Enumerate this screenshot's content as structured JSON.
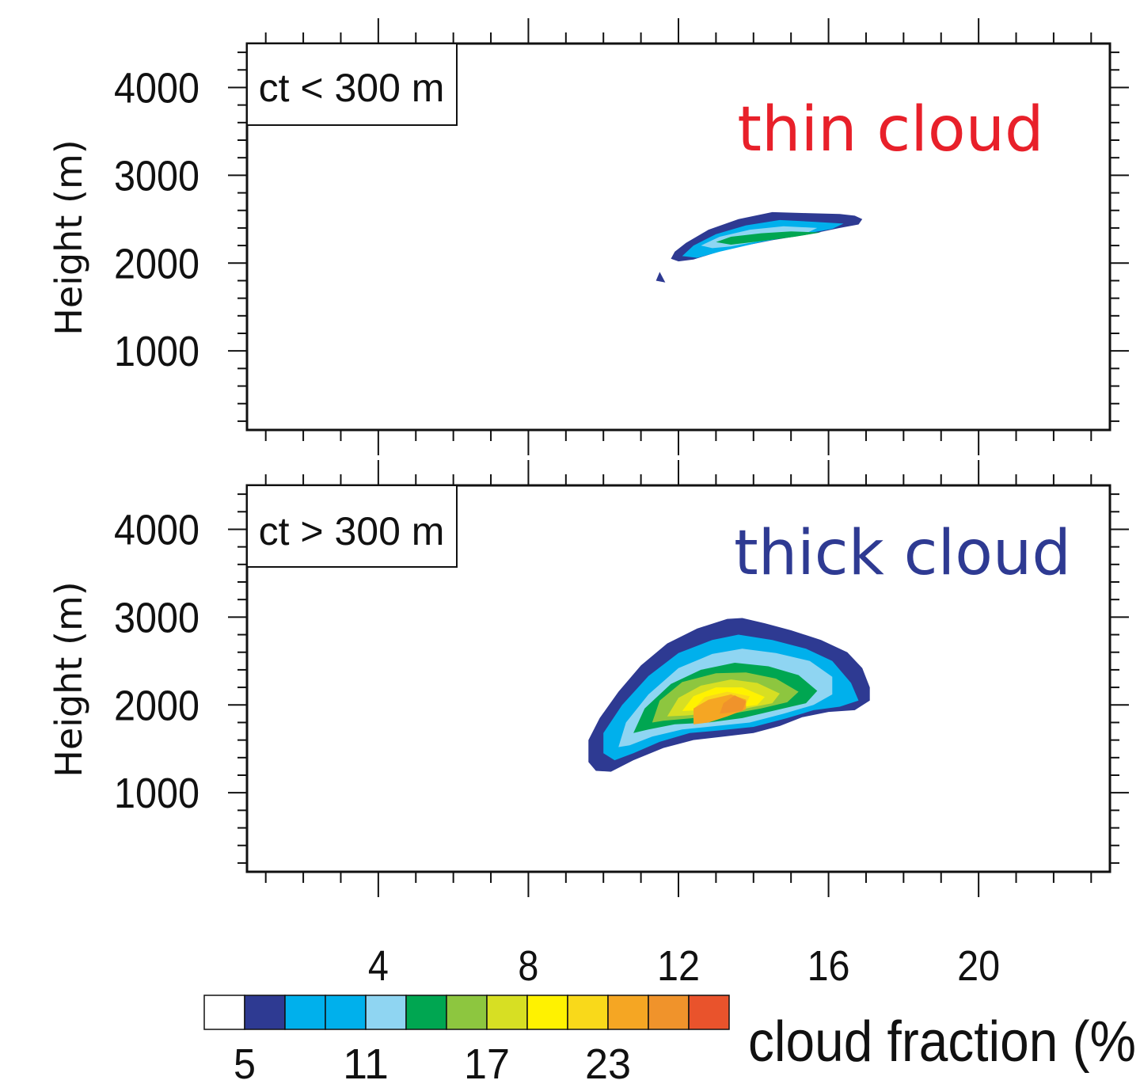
{
  "chart_data": [
    {
      "type": "contour",
      "ylabel": "Height (m)",
      "annotation_box": "ct < 300 m",
      "annotation_text": "thin cloud",
      "annotation_color": "#e8202a",
      "xlim": [
        0.5,
        23.5
      ],
      "ylim": [
        100,
        4500
      ],
      "xticks": [
        4,
        8,
        12,
        16,
        20
      ],
      "xtick_labels_shown": false,
      "yticks": [
        1000,
        2000,
        3000,
        4000
      ],
      "ytick_labels": [
        "1000",
        "2000",
        "3000",
        "4000"
      ],
      "contours": [
        {
          "level": 5,
          "color": "#2e3a92",
          "points": [
            [
              11.8,
              2050
            ],
            [
              11.9,
              2130
            ],
            [
              12.2,
              2230
            ],
            [
              12.8,
              2380
            ],
            [
              13.6,
              2500
            ],
            [
              14.5,
              2580
            ],
            [
              15.4,
              2570
            ],
            [
              16.3,
              2560
            ],
            [
              16.7,
              2540
            ],
            [
              16.9,
              2500
            ],
            [
              16.8,
              2440
            ],
            [
              16.3,
              2400
            ],
            [
              15.5,
              2330
            ],
            [
              14.5,
              2260
            ],
            [
              13.3,
              2160
            ],
            [
              12.4,
              2040
            ],
            [
              12.0,
              2020
            ]
          ]
        },
        {
          "level": 5,
          "color": "#2e3a92",
          "points": [
            [
              11.4,
              1800
            ],
            [
              11.5,
              1900
            ],
            [
              11.65,
              1780
            ]
          ]
        },
        {
          "level": 8,
          "color": "#00b0ec",
          "points": [
            [
              12.1,
              2080
            ],
            [
              12.4,
              2200
            ],
            [
              13.0,
              2330
            ],
            [
              13.8,
              2430
            ],
            [
              14.7,
              2490
            ],
            [
              15.6,
              2470
            ],
            [
              16.4,
              2450
            ],
            [
              16.1,
              2390
            ],
            [
              15.2,
              2320
            ],
            [
              14.2,
              2240
            ],
            [
              13.1,
              2130
            ],
            [
              12.5,
              2060
            ]
          ]
        },
        {
          "level": 14,
          "color": "#8fd5f2",
          "points": [
            [
              12.6,
              2200
            ],
            [
              13.1,
              2300
            ],
            [
              13.9,
              2380
            ],
            [
              14.8,
              2420
            ],
            [
              15.7,
              2400
            ],
            [
              15.4,
              2340
            ],
            [
              14.4,
              2270
            ],
            [
              13.4,
              2190
            ],
            [
              12.9,
              2170
            ]
          ]
        },
        {
          "level": 17,
          "color": "#00a651",
          "points": [
            [
              13.0,
              2240
            ],
            [
              13.4,
              2300
            ],
            [
              14.2,
              2340
            ],
            [
              15.0,
              2360
            ],
            [
              15.8,
              2350
            ],
            [
              15.1,
              2300
            ],
            [
              14.2,
              2250
            ],
            [
              13.4,
              2210
            ]
          ]
        }
      ]
    },
    {
      "type": "contour",
      "ylabel": "Height (m)",
      "annotation_box": "ct > 300 m",
      "annotation_text": "thick cloud",
      "annotation_color": "#2e3a92",
      "xlim": [
        0.5,
        23.5
      ],
      "ylim": [
        100,
        4500
      ],
      "xticks": [
        4,
        8,
        12,
        16,
        20
      ],
      "xtick_labels": [
        "4",
        "8",
        "12",
        "16",
        "20"
      ],
      "yticks": [
        1000,
        2000,
        3000,
        4000
      ],
      "ytick_labels": [
        "1000",
        "2000",
        "3000",
        "4000"
      ],
      "contours": [
        {
          "level": 5,
          "color": "#2e3a92",
          "points": [
            [
              9.6,
              1350
            ],
            [
              9.6,
              1600
            ],
            [
              9.9,
              1850
            ],
            [
              10.4,
              2150
            ],
            [
              11.0,
              2450
            ],
            [
              11.7,
              2700
            ],
            [
              12.5,
              2870
            ],
            [
              13.3,
              2980
            ],
            [
              13.7,
              2990
            ],
            [
              14.3,
              2930
            ],
            [
              15.0,
              2850
            ],
            [
              15.8,
              2740
            ],
            [
              16.5,
              2600
            ],
            [
              16.9,
              2420
            ],
            [
              17.1,
              2200
            ],
            [
              17.1,
              2050
            ],
            [
              16.7,
              1940
            ],
            [
              16.0,
              1920
            ],
            [
              15.3,
              1860
            ],
            [
              14.7,
              1760
            ],
            [
              14.0,
              1680
            ],
            [
              13.2,
              1640
            ],
            [
              12.4,
              1600
            ],
            [
              11.6,
              1510
            ],
            [
              10.8,
              1370
            ],
            [
              10.2,
              1240
            ],
            [
              9.8,
              1250
            ]
          ]
        },
        {
          "level": 8,
          "color": "#00b0ec",
          "points": [
            [
              10.0,
              1450
            ],
            [
              10.0,
              1680
            ],
            [
              10.5,
              2000
            ],
            [
              11.2,
              2330
            ],
            [
              12.0,
              2590
            ],
            [
              12.9,
              2740
            ],
            [
              13.6,
              2800
            ],
            [
              14.5,
              2740
            ],
            [
              15.4,
              2640
            ],
            [
              16.1,
              2500
            ],
            [
              16.6,
              2250
            ],
            [
              16.8,
              2050
            ],
            [
              16.3,
              1980
            ],
            [
              15.6,
              1940
            ],
            [
              14.9,
              1850
            ],
            [
              14.0,
              1750
            ],
            [
              13.1,
              1710
            ],
            [
              12.3,
              1680
            ],
            [
              11.5,
              1580
            ],
            [
              10.8,
              1450
            ],
            [
              10.3,
              1370
            ]
          ]
        },
        {
          "level": 14,
          "color": "#8fd5f2",
          "points": [
            [
              10.4,
              1520
            ],
            [
              10.6,
              1800
            ],
            [
              11.2,
              2120
            ],
            [
              12.0,
              2420
            ],
            [
              12.9,
              2580
            ],
            [
              13.7,
              2640
            ],
            [
              14.6,
              2590
            ],
            [
              15.5,
              2500
            ],
            [
              16.1,
              2320
            ],
            [
              16.1,
              2120
            ],
            [
              15.6,
              2000
            ],
            [
              14.8,
              1900
            ],
            [
              13.9,
              1800
            ],
            [
              13.0,
              1760
            ],
            [
              12.1,
              1720
            ],
            [
              11.3,
              1640
            ],
            [
              10.7,
              1540
            ]
          ]
        },
        {
          "level": 17,
          "color": "#00a651",
          "points": [
            [
              10.8,
              1680
            ],
            [
              11.1,
              1960
            ],
            [
              11.8,
              2240
            ],
            [
              12.6,
              2400
            ],
            [
              13.5,
              2480
            ],
            [
              14.4,
              2440
            ],
            [
              15.2,
              2340
            ],
            [
              15.7,
              2160
            ],
            [
              15.4,
              2020
            ],
            [
              14.6,
              1940
            ],
            [
              13.7,
              1850
            ],
            [
              12.8,
              1800
            ],
            [
              11.9,
              1780
            ],
            [
              11.2,
              1720
            ]
          ]
        },
        {
          "level": 20,
          "color": "#8dc63f",
          "points": [
            [
              11.3,
              1800
            ],
            [
              11.5,
              2050
            ],
            [
              12.1,
              2260
            ],
            [
              13.0,
              2360
            ],
            [
              13.8,
              2370
            ],
            [
              14.6,
              2300
            ],
            [
              15.2,
              2150
            ],
            [
              14.9,
              2030
            ],
            [
              14.2,
              1960
            ],
            [
              13.3,
              1890
            ],
            [
              12.4,
              1850
            ],
            [
              11.6,
              1820
            ]
          ]
        },
        {
          "level": 23,
          "color": "#d7df23",
          "points": [
            [
              11.7,
              1870
            ],
            [
              12.0,
              2080
            ],
            [
              12.6,
              2220
            ],
            [
              13.4,
              2290
            ],
            [
              14.1,
              2250
            ],
            [
              14.7,
              2130
            ],
            [
              14.5,
              2020
            ],
            [
              13.8,
              1960
            ],
            [
              13.0,
              1910
            ],
            [
              12.2,
              1880
            ]
          ]
        },
        {
          "level": 26,
          "color": "#fff200",
          "points": [
            [
              12.1,
              1930
            ],
            [
              12.4,
              2100
            ],
            [
              13.0,
              2200
            ],
            [
              13.7,
              2200
            ],
            [
              14.3,
              2090
            ],
            [
              14.1,
              2000
            ],
            [
              13.4,
              1960
            ],
            [
              12.6,
              1940
            ]
          ]
        },
        {
          "level": 29,
          "color": "#f9d91a",
          "points": [
            [
              12.4,
              1950
            ],
            [
              12.7,
              2090
            ],
            [
              13.3,
              2150
            ],
            [
              13.9,
              2100
            ],
            [
              13.8,
              2010
            ],
            [
              13.1,
              1970
            ]
          ]
        },
        {
          "level": 32,
          "color": "#f5a623",
          "points": [
            [
              12.4,
              1780
            ],
            [
              12.4,
              1960
            ],
            [
              12.8,
              2060
            ],
            [
              13.4,
              2120
            ],
            [
              13.8,
              2060
            ],
            [
              13.8,
              1950
            ],
            [
              13.3,
              1870
            ],
            [
              12.8,
              1800
            ]
          ]
        },
        {
          "level": 35,
          "color": "#f0932b",
          "points": [
            [
              13.1,
              1900
            ],
            [
              13.2,
              2020
            ],
            [
              13.5,
              2110
            ],
            [
              13.8,
              2040
            ],
            [
              13.7,
              1930
            ]
          ]
        }
      ]
    },
    {
      "type": "colorbar",
      "title": "cloud fraction (%",
      "labels": [
        "5",
        "11",
        "17",
        "23"
      ],
      "colors": [
        "#ffffff",
        "#2e3a92",
        "#00b0ec",
        "#00b0ec",
        "#8fd5f2",
        "#00a651",
        "#8dc63f",
        "#d7df23",
        "#fff200",
        "#f9d91a",
        "#f5a623",
        "#f0932b",
        "#e9532c"
      ]
    }
  ]
}
